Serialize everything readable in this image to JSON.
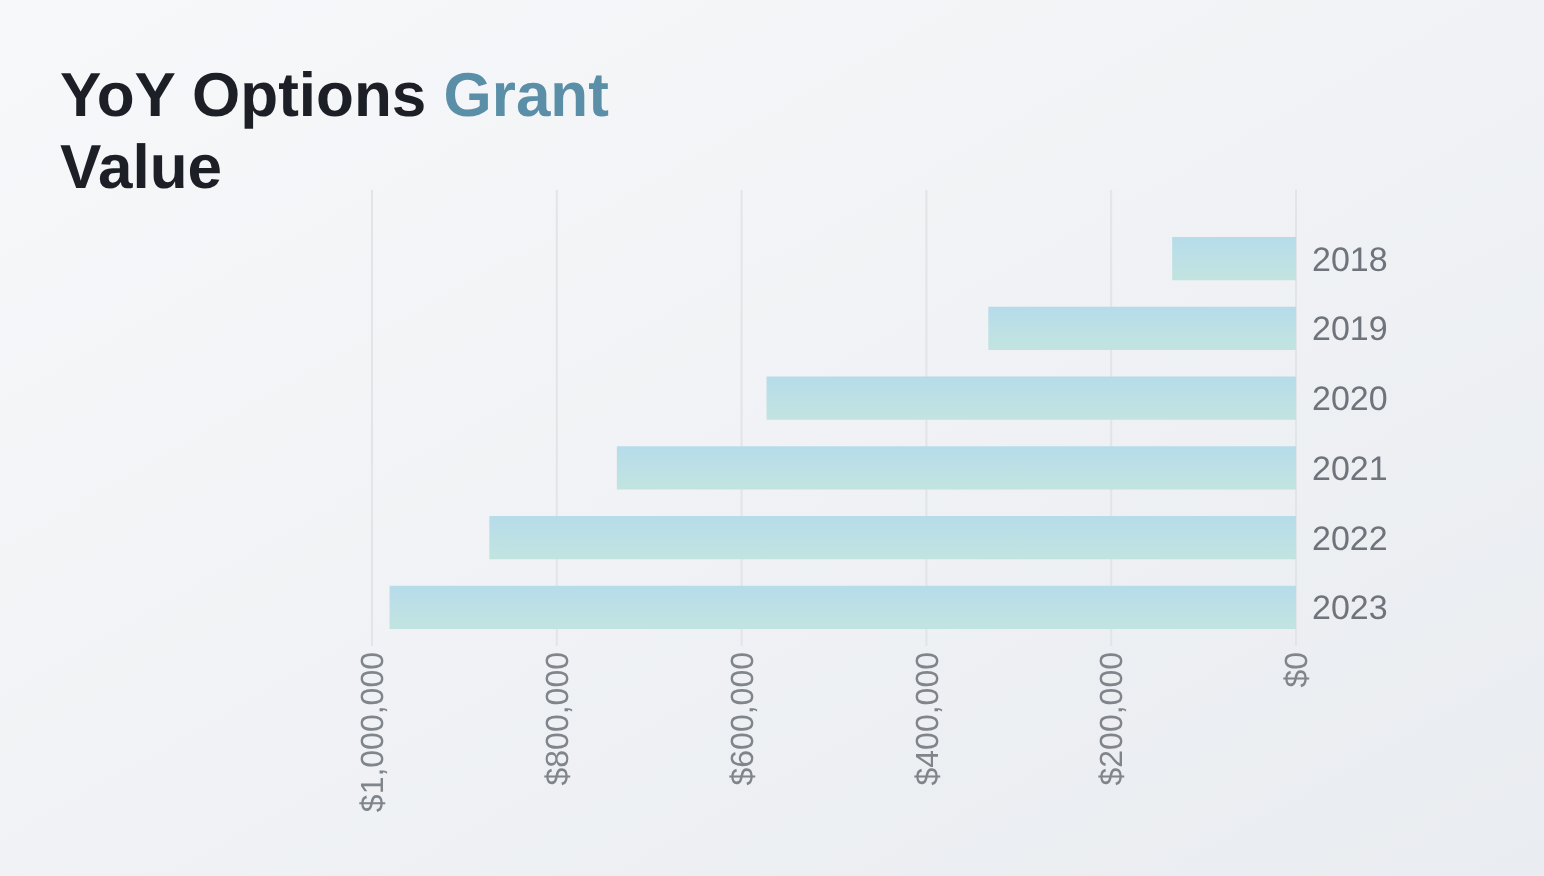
{
  "chart_data": {
    "type": "bar",
    "orientation": "horizontal",
    "title": "YoY Options Grant Value",
    "categories": [
      "2018",
      "2019",
      "2020",
      "2021",
      "2022",
      "2023"
    ],
    "values": [
      134000,
      333000,
      573000,
      735000,
      873000,
      981000
    ],
    "color": "#c2e4e0",
    "xlim": [
      1000000,
      0
    ],
    "xticks": [
      {
        "value": 1000000,
        "label": "$1,000,000"
      },
      {
        "value": 800000,
        "label": "$800,000"
      },
      {
        "value": 600000,
        "label": "$600,000"
      },
      {
        "value": 400000,
        "label": "$400,000"
      },
      {
        "value": 200000,
        "label": "$200,000"
      },
      {
        "value": 0,
        "label": "$0"
      }
    ],
    "grid": "x"
  }
}
